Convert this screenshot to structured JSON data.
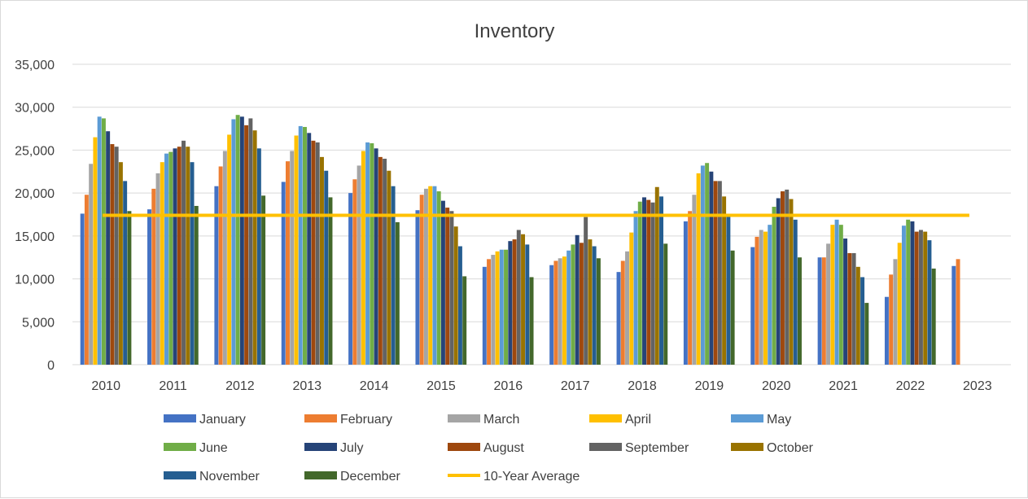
{
  "chart_data": {
    "type": "bar",
    "title": "Inventory",
    "xlabel": "",
    "ylabel": "",
    "ylim": [
      0,
      35000
    ],
    "yticks": [
      0,
      5000,
      10000,
      15000,
      20000,
      25000,
      30000,
      35000
    ],
    "ytick_labels": [
      "0",
      "5,000",
      "10,000",
      "15,000",
      "20,000",
      "25,000",
      "30,000",
      "35,000"
    ],
    "grid": "horizontal",
    "legend_position": "bottom",
    "categories": [
      "2010",
      "2011",
      "2012",
      "2013",
      "2014",
      "2015",
      "2016",
      "2017",
      "2018",
      "2019",
      "2020",
      "2021",
      "2022",
      "2023"
    ],
    "series": [
      {
        "name": "January",
        "color": "#4472C4",
        "values": [
          17600,
          18100,
          20800,
          21300,
          20000,
          18000,
          11400,
          11600,
          10800,
          16700,
          13700,
          12500,
          7900,
          11500
        ]
      },
      {
        "name": "February",
        "color": "#ED7D31",
        "values": [
          19800,
          20500,
          23100,
          23700,
          21600,
          19800,
          12300,
          12100,
          12100,
          17900,
          14900,
          12500,
          10500,
          12300
        ]
      },
      {
        "name": "March",
        "color": "#A5A5A5",
        "values": [
          23400,
          22300,
          24900,
          24900,
          23200,
          20500,
          12800,
          12400,
          13200,
          19800,
          15700,
          14100,
          12300,
          null
        ]
      },
      {
        "name": "April",
        "color": "#FFC000",
        "values": [
          26500,
          23600,
          26800,
          26700,
          24900,
          20800,
          13200,
          12600,
          15400,
          22300,
          15500,
          16300,
          14200,
          null
        ]
      },
      {
        "name": "May",
        "color": "#5B9BD5",
        "values": [
          28900,
          24600,
          28600,
          27800,
          25900,
          20800,
          13400,
          13300,
          17900,
          23200,
          16300,
          16900,
          16200,
          null
        ]
      },
      {
        "name": "June",
        "color": "#70AD47",
        "values": [
          28700,
          24800,
          29100,
          27700,
          25800,
          20200,
          13400,
          14000,
          19000,
          23500,
          18400,
          16300,
          16900,
          null
        ]
      },
      {
        "name": "July",
        "color": "#264478",
        "values": [
          27200,
          25200,
          28900,
          27000,
          25200,
          19100,
          14400,
          15100,
          19500,
          22500,
          19400,
          14700,
          16700,
          null
        ]
      },
      {
        "name": "August",
        "color": "#9E480E",
        "values": [
          25700,
          25400,
          27900,
          26100,
          24200,
          18300,
          14600,
          14200,
          19200,
          21400,
          20200,
          13000,
          15500,
          null
        ]
      },
      {
        "name": "September",
        "color": "#636363",
        "values": [
          25400,
          26100,
          28700,
          25900,
          24000,
          17900,
          15700,
          17200,
          18900,
          21400,
          20400,
          13000,
          15700,
          null
        ]
      },
      {
        "name": "October",
        "color": "#997300",
        "values": [
          23600,
          25400,
          27300,
          24200,
          22600,
          16100,
          15200,
          14600,
          20700,
          19600,
          19300,
          11400,
          15500,
          null
        ]
      },
      {
        "name": "November",
        "color": "#255E91",
        "values": [
          21400,
          23600,
          25200,
          22600,
          20800,
          13800,
          14000,
          13800,
          19600,
          17300,
          16900,
          10200,
          14500,
          null
        ]
      },
      {
        "name": "December",
        "color": "#43682B",
        "values": [
          17900,
          18500,
          19700,
          19500,
          16600,
          10300,
          10200,
          12400,
          14100,
          13300,
          12500,
          7200,
          11200,
          null
        ]
      }
    ],
    "reference_line": {
      "name": "10-Year Average",
      "color": "#FFC000",
      "value": 17400
    }
  }
}
